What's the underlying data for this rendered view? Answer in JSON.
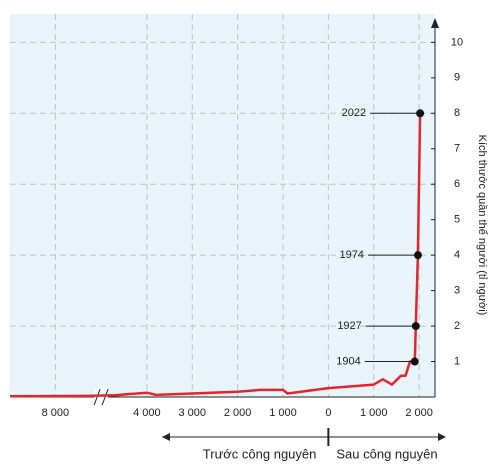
{
  "chart_data": {
    "type": "line",
    "y_label": "Kích thước quần thể người (tỉ người)",
    "x": [
      -9000,
      -7300,
      -4700,
      -4000,
      -3800,
      -3000,
      -2000,
      -1500,
      -1000,
      -900,
      0,
      500,
      1000,
      1200,
      1400,
      1600,
      1700,
      1800,
      1904,
      1927,
      1974,
      2022
    ],
    "series": [
      {
        "color": "#e3262e",
        "values": [
          0.02,
          0.03,
          0.05,
          0.12,
          0.06,
          0.1,
          0.15,
          0.2,
          0.2,
          0.1,
          0.25,
          0.3,
          0.35,
          0.5,
          0.35,
          0.6,
          0.6,
          1,
          1,
          2,
          4,
          8
        ]
      }
    ],
    "points": {
      "x": [
        1904,
        1927,
        1974,
        2022
      ],
      "values": [
        1,
        2,
        4,
        8
      ]
    },
    "xlim": [
      -9000,
      2350
    ],
    "x_break": [
      -7300,
      -4700
    ],
    "xticks": [
      {
        "value": -8000,
        "label": "8 000"
      },
      {
        "value": -4000,
        "label": "4 000"
      },
      {
        "value": -3000,
        "label": "3 000"
      },
      {
        "value": -2000,
        "label": "2 000"
      },
      {
        "value": -1000,
        "label": "1 000"
      },
      0,
      {
        "value": 1000,
        "label": "1 000"
      },
      {
        "value": 2000,
        "label": "2 000"
      }
    ],
    "ylim": [
      0,
      10.8
    ],
    "yticks": [
      1,
      2,
      3,
      4,
      5,
      6,
      7,
      8,
      9,
      10
    ],
    "era_labels": [
      "Trước công nguyên",
      "Sau công nguyên"
    ],
    "grid": true
  }
}
